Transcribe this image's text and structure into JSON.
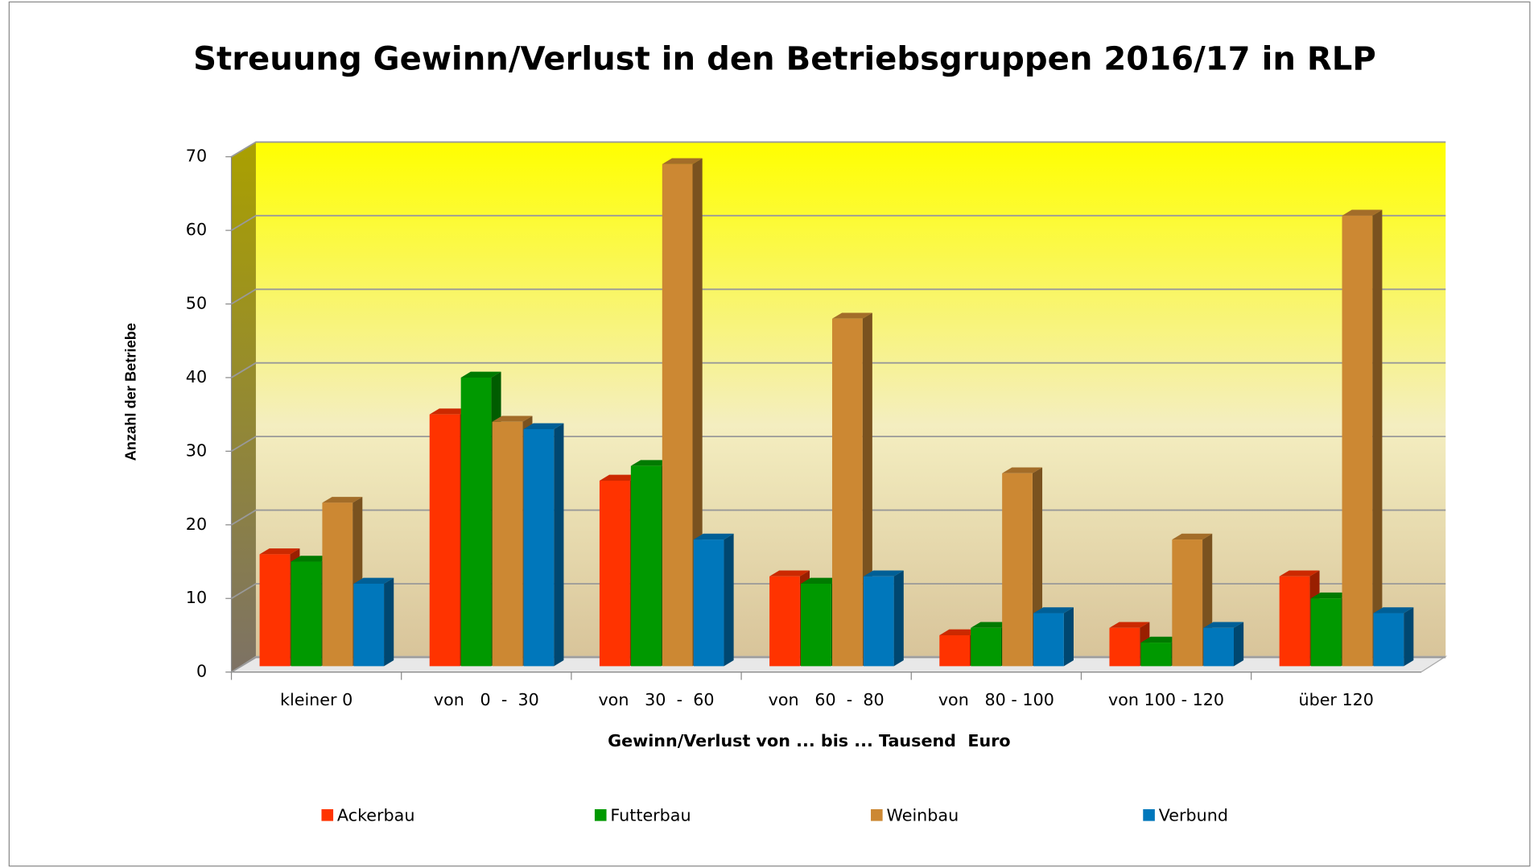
{
  "chart_data": {
    "type": "bar3d",
    "title": "Streuung Gewinn/Verlust in den Betriebsgruppen 2016/17 in RLP",
    "x_label": "Gewinn/Verlust von ... bis ... Tausend  Euro",
    "y_label": "Anzahl der Betriebe",
    "categories": [
      "kleiner 0",
      "von   0  -  30",
      "von   30  -  60",
      "von   60  -  80",
      "von   80 - 100",
      "von 100 - 120",
      "über 120"
    ],
    "series": [
      {
        "name": "Ackerbau",
        "color": "#ff3300",
        "values": [
          16,
          35,
          26,
          13,
          5,
          6,
          13
        ]
      },
      {
        "name": "Futterbau",
        "color": "#009900",
        "values": [
          15,
          40,
          28,
          12,
          6,
          4,
          10
        ]
      },
      {
        "name": "Weinbau",
        "color": "#cc8833",
        "values": [
          23,
          34,
          69,
          48,
          27,
          18,
          62
        ]
      },
      {
        "name": "Verbund",
        "color": "#0077bb",
        "values": [
          12,
          33,
          18,
          13,
          8,
          6,
          8
        ]
      }
    ],
    "ylim": [
      0,
      70
    ],
    "yticks": [
      0,
      10,
      20,
      30,
      40,
      50,
      60,
      70
    ],
    "grid": true,
    "legend": "bottom"
  }
}
